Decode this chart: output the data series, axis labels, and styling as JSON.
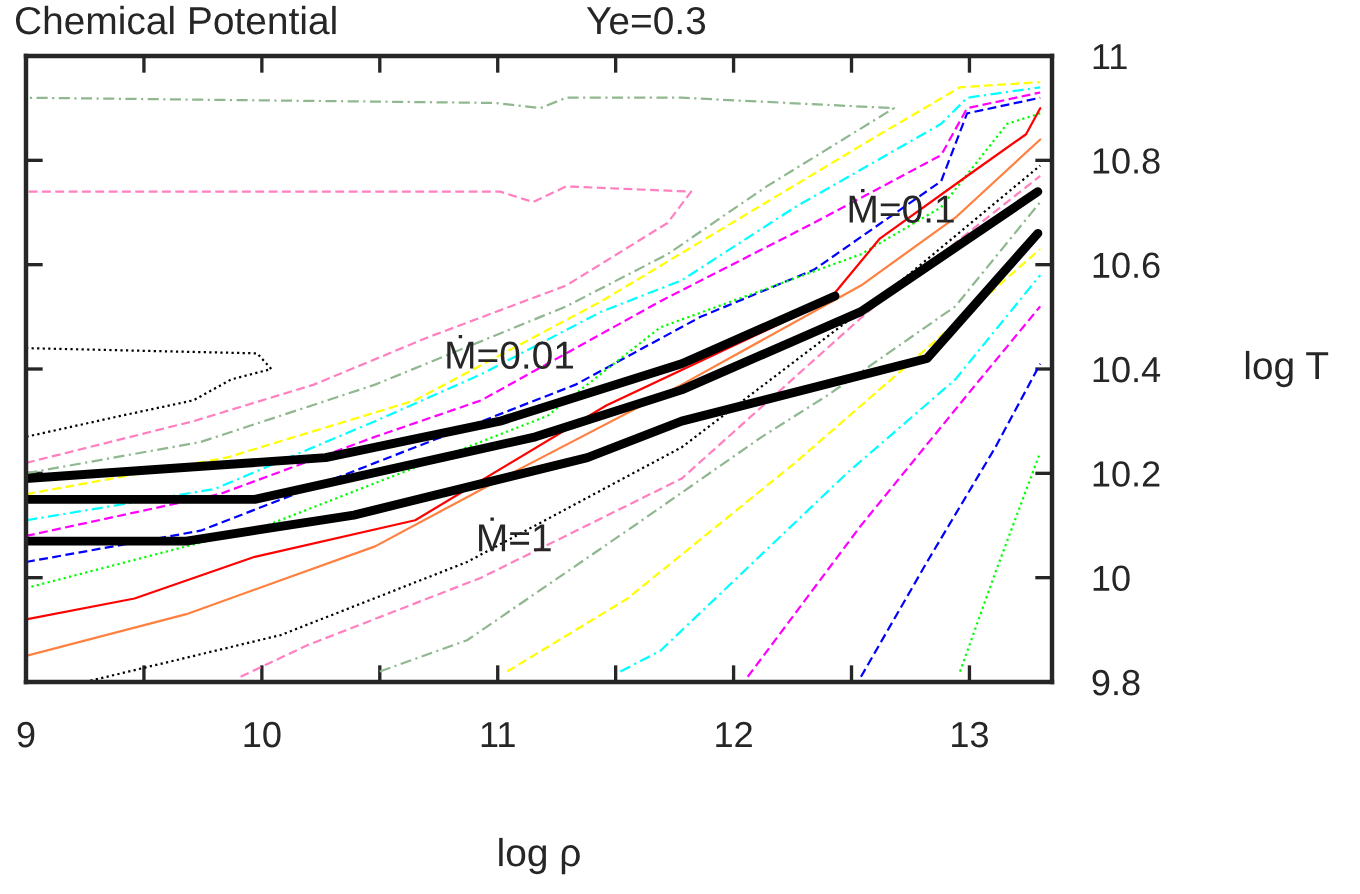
{
  "chart_data": {
    "type": "line",
    "title": "Chemical Potential",
    "subtitle": "Ye=0.3",
    "xlabel": "log ρ",
    "ylabel": "log T",
    "xlim": [
      9,
      13.35
    ],
    "ylim": [
      9.8,
      11
    ],
    "xticks": [
      9,
      {
        "value": 9.5,
        "label": null
      },
      10,
      {
        "value": 10.5,
        "label": null
      },
      11,
      {
        "value": 11.5,
        "label": null
      },
      12,
      {
        "value": 12.5,
        "label": null
      },
      13
    ],
    "yticks": [
      9.8,
      10,
      10.2,
      10.4,
      10.6,
      10.8,
      11
    ],
    "grid": false,
    "legend": false,
    "marker": "none",
    "annotations": [
      {
        "text": "Ṁ=0.01",
        "x": 11.05,
        "y": 10.42
      },
      {
        "text": "Ṁ=0.1",
        "x": 12.71,
        "y": 10.7
      },
      {
        "text": "Ṁ=1",
        "x": 11.07,
        "y": 10.07
      }
    ],
    "series": [
      {
        "color": "#ff80c0",
        "line_style": "dashed",
        "x": [
          9.0,
          9.71,
          10.22,
          10.7,
          11.29,
          11.72,
          11.82,
          11.29,
          11.15,
          11.01,
          9.0
        ],
        "values": [
          10.22,
          10.3,
          10.37,
          10.46,
          10.56,
          10.68,
          10.74,
          10.75,
          10.72,
          10.74,
          10.74
        ]
      },
      {
        "color": "#90b890",
        "line_style": "dashdot",
        "x": [
          9.0,
          9.74,
          10.48,
          11.29,
          11.72,
          12.14,
          12.68,
          11.78,
          11.29,
          11.18,
          10.99,
          9.0
        ],
        "values": [
          10.2,
          10.26,
          10.37,
          10.52,
          10.62,
          10.75,
          10.9,
          10.92,
          10.92,
          10.9,
          10.91,
          10.92
        ]
      },
      {
        "color": "#ffff00",
        "line_style": "dashed",
        "x": [
          9.0,
          9.85,
          10.65,
          11.44,
          12.03,
          12.62,
          12.96,
          13.3
        ],
        "values": [
          10.16,
          10.23,
          10.34,
          10.53,
          10.69,
          10.85,
          10.94,
          10.95
        ]
      },
      {
        "color": "#00ffff",
        "line_style": "dashdot",
        "x": [
          9.0,
          9.8,
          10.48,
          10.93,
          11.44,
          11.78,
          12.26,
          12.88,
          12.99,
          13.3
        ],
        "values": [
          10.11,
          10.17,
          10.3,
          10.39,
          10.51,
          10.57,
          10.71,
          10.87,
          10.92,
          10.94
        ]
      },
      {
        "color": "#ff00ff",
        "line_style": "dashed",
        "x": [
          9.0,
          9.82,
          10.48,
          10.93,
          11.69,
          12.34,
          12.88,
          12.99,
          13.3
        ],
        "values": [
          10.08,
          10.16,
          10.27,
          10.34,
          10.53,
          10.68,
          10.81,
          10.9,
          10.93
        ]
      },
      {
        "color": "#0000ff",
        "line_style": "dashed",
        "x": [
          9.0,
          9.74,
          10.48,
          11.33,
          11.86,
          12.34,
          12.88,
          12.99,
          13.3
        ],
        "values": [
          10.03,
          10.09,
          10.22,
          10.37,
          10.5,
          10.59,
          10.76,
          10.89,
          10.92
        ]
      },
      {
        "color": "#00ff00",
        "line_style": "dotted",
        "x": [
          9.0,
          10.02,
          11.21,
          11.69,
          12.54,
          12.88,
          13.16,
          13.3
        ],
        "values": [
          9.98,
          10.1,
          10.31,
          10.48,
          10.62,
          10.71,
          10.87,
          10.89
        ]
      },
      {
        "color": "#ff0000",
        "line_style": "solid",
        "x": [
          9.0,
          9.46,
          9.97,
          10.65,
          11.46,
          12.4,
          12.62,
          12.99,
          13.24,
          13.3
        ],
        "values": [
          9.92,
          9.96,
          10.04,
          10.11,
          10.33,
          10.53,
          10.65,
          10.77,
          10.85,
          10.9
        ]
      },
      {
        "color": "#ff8040",
        "line_style": "solid",
        "x": [
          9.0,
          9.68,
          10.48,
          11.1,
          11.78,
          12.54,
          12.94,
          13.3
        ],
        "values": [
          9.85,
          9.93,
          10.06,
          10.21,
          10.37,
          10.56,
          10.69,
          10.84
        ]
      },
      {
        "color": "#000000",
        "line_style": "dotted",
        "x": [
          9.25,
          10.08,
          10.87,
          11.78,
          12.74,
          13.3
        ],
        "values": [
          9.8,
          9.89,
          10.03,
          10.25,
          10.58,
          10.79
        ]
      },
      {
        "color": "#000000",
        "line_style": "dotted",
        "x": [
          9.0,
          9.98,
          10.04,
          9.87,
          9.71,
          9.4,
          9.0
        ],
        "values": [
          10.44,
          10.43,
          10.4,
          10.38,
          10.34,
          10.31,
          10.27
        ]
      },
      {
        "color": "#ff80c0",
        "line_style": "dashed",
        "x": [
          9.91,
          10.19,
          10.93,
          11.78,
          12.57,
          13.3
        ],
        "values": [
          9.81,
          9.87,
          10.0,
          10.19,
          10.51,
          10.77
        ]
      },
      {
        "color": "#90b890",
        "line_style": "dashdot",
        "x": [
          10.5,
          10.87,
          11.58,
          12.12,
          12.4,
          12.94,
          13.3
        ],
        "values": [
          9.82,
          9.88,
          10.1,
          10.27,
          10.35,
          10.52,
          10.72
        ]
      },
      {
        "color": "#ffff00",
        "line_style": "dashed",
        "x": [
          11.04,
          11.55,
          12.26,
          12.77,
          13.3
        ],
        "values": [
          9.82,
          9.96,
          10.22,
          10.42,
          10.63
        ]
      },
      {
        "color": "#00ffff",
        "line_style": "dashdot",
        "x": [
          11.52,
          11.69,
          12.48,
          12.94,
          13.3
        ],
        "values": [
          9.82,
          9.86,
          10.2,
          10.38,
          10.58
        ]
      },
      {
        "color": "#ff00ff",
        "line_style": "dashed",
        "x": [
          12.06,
          12.54,
          12.99,
          13.3
        ],
        "values": [
          9.81,
          10.1,
          10.35,
          10.52
        ]
      },
      {
        "color": "#0000ff",
        "line_style": "dashed",
        "x": [
          12.54,
          12.82,
          13.11,
          13.3
        ],
        "values": [
          9.81,
          10.03,
          10.25,
          10.41
        ]
      },
      {
        "color": "#00ff00",
        "line_style": "dotted",
        "x": [
          12.96,
          13.11,
          13.3
        ],
        "values": [
          9.82,
          10.01,
          10.24
        ]
      },
      {
        "color": "#000000",
        "line_style": "solid",
        "x": [
          9.0,
          10.27,
          11.01,
          11.78,
          12.43
        ],
        "values": [
          10.19,
          10.23,
          10.3,
          10.41,
          10.54
        ]
      },
      {
        "color": "#000000",
        "line_style": "solid",
        "x": [
          9.0,
          9.97,
          11.16,
          11.78,
          12.54,
          13.29
        ],
        "values": [
          10.15,
          10.15,
          10.27,
          10.36,
          10.51,
          10.74
        ]
      },
      {
        "color": "#000000",
        "line_style": "solid",
        "x": [
          9.0,
          9.68,
          10.39,
          11.38,
          11.78,
          12.82,
          13.29
        ],
        "values": [
          10.07,
          10.07,
          10.12,
          10.23,
          10.3,
          10.42,
          10.66
        ]
      }
    ]
  }
}
